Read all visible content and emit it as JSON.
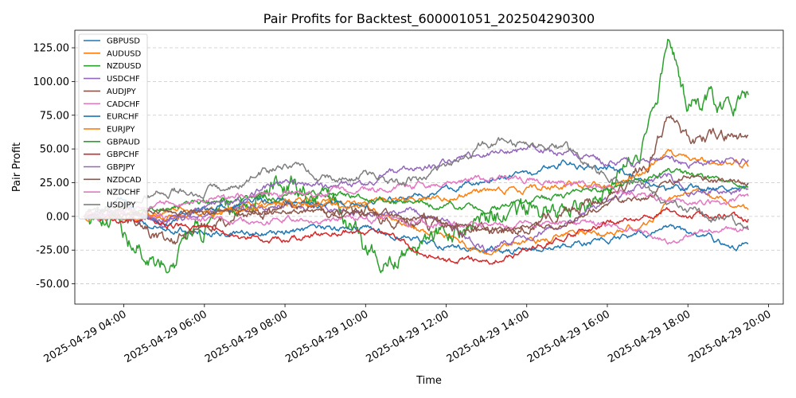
{
  "chart_data": {
    "type": "line",
    "title": "Pair Profits for Backtest_600001051_202504290300",
    "xlabel": "Time",
    "ylabel": "Pair Profit",
    "xlim": [
      "2025-04-29 02:47",
      "2025-04-29 20:22"
    ],
    "ylim": [
      -65,
      138
    ],
    "grid": "y-dashed",
    "legend_position": "upper-left",
    "x_ticks": [
      "2025-04-29 04:00",
      "2025-04-29 06:00",
      "2025-04-29 08:00",
      "2025-04-29 10:00",
      "2025-04-29 12:00",
      "2025-04-29 14:00",
      "2025-04-29 16:00",
      "2025-04-29 18:00",
      "2025-04-29 20:00"
    ],
    "y_ticks": [
      -50,
      -25,
      0,
      25,
      50,
      75,
      100,
      125
    ],
    "y_tick_labels": [
      "-50.00",
      "-25.00",
      "0.00",
      "25.00",
      "50.00",
      "75.00",
      "100.00",
      "125.00"
    ],
    "x": [
      "2025-04-29 03:00",
      "2025-04-29 04:00",
      "2025-04-29 05:00",
      "2025-04-29 06:00",
      "2025-04-29 07:00",
      "2025-04-29 08:00",
      "2025-04-29 09:00",
      "2025-04-29 10:00",
      "2025-04-29 11:00",
      "2025-04-29 12:00",
      "2025-04-29 13:00",
      "2025-04-29 14:00",
      "2025-04-29 15:00",
      "2025-04-29 16:00",
      "2025-04-29 17:00",
      "2025-04-29 17:30",
      "2025-04-29 18:00",
      "2025-04-29 19:00",
      "2025-04-29 19:30"
    ],
    "series": [
      {
        "name": "GBPUSD",
        "color": "#1f77b4",
        "values": [
          0,
          -3,
          -8,
          -12,
          -14,
          -12,
          -10,
          -8,
          -15,
          -22,
          -25,
          -25,
          -22,
          -18,
          -13,
          -8,
          -12,
          -22,
          -20
        ]
      },
      {
        "name": "AUDUSD",
        "color": "#ff7f0e",
        "values": [
          0,
          -2,
          2,
          5,
          8,
          14,
          12,
          8,
          -8,
          -15,
          -28,
          -20,
          -14,
          -12,
          -5,
          10,
          20,
          8,
          5
        ]
      },
      {
        "name": "NZDUSD",
        "color": "#2ca02c",
        "values": [
          0,
          -12,
          -35,
          -10,
          15,
          25,
          18,
          -25,
          -28,
          -10,
          -5,
          2,
          5,
          15,
          55,
          125,
          85,
          80,
          90
        ]
      },
      {
        "name": "USDCHF",
        "color": "#9467bd",
        "values": [
          0,
          5,
          -5,
          3,
          5,
          10,
          6,
          2,
          5,
          -5,
          -25,
          -15,
          -5,
          10,
          25,
          30,
          20,
          18,
          20
        ]
      },
      {
        "name": "AUDJPY",
        "color": "#8c564b",
        "values": [
          0,
          4,
          -20,
          -5,
          3,
          8,
          5,
          2,
          -2,
          -8,
          -15,
          -5,
          3,
          15,
          40,
          75,
          55,
          60,
          60
        ]
      },
      {
        "name": "CADCHF",
        "color": "#e377c2",
        "values": [
          0,
          2,
          -2,
          -3,
          -4,
          -2,
          -3,
          -2,
          -4,
          -5,
          -8,
          -6,
          -5,
          -5,
          -10,
          -20,
          -15,
          -8,
          -10
        ]
      },
      {
        "name": "EURCHF",
        "color": "#1f77b4",
        "values": [
          0,
          12,
          -5,
          4,
          10,
          12,
          8,
          10,
          15,
          20,
          28,
          30,
          40,
          35,
          25,
          20,
          22,
          20,
          24
        ]
      },
      {
        "name": "EURJPY",
        "color": "#ff7f0e",
        "values": [
          0,
          3,
          0,
          2,
          5,
          10,
          8,
          10,
          12,
          15,
          18,
          20,
          22,
          24,
          35,
          48,
          45,
          40,
          37
        ]
      },
      {
        "name": "GBPAUD",
        "color": "#2ca02c",
        "values": [
          0,
          3,
          6,
          10,
          12,
          15,
          18,
          15,
          10,
          8,
          5,
          10,
          15,
          20,
          30,
          35,
          30,
          25,
          22
        ]
      },
      {
        "name": "GBPCHF",
        "color": "#d62728",
        "values": [
          0,
          -2,
          -5,
          -10,
          -15,
          -18,
          -12,
          -10,
          -20,
          -32,
          -35,
          -25,
          -15,
          -5,
          0,
          5,
          0,
          0,
          -2
        ]
      },
      {
        "name": "GBPJPY",
        "color": "#9467bd",
        "values": [
          0,
          5,
          -5,
          5,
          15,
          25,
          22,
          25,
          35,
          40,
          45,
          50,
          48,
          40,
          38,
          45,
          40,
          40,
          42
        ]
      },
      {
        "name": "NZDCAD",
        "color": "#8c564b",
        "values": [
          0,
          2,
          5,
          3,
          4,
          5,
          3,
          2,
          0,
          -5,
          -10,
          -8,
          -5,
          10,
          15,
          25,
          30,
          25,
          25
        ]
      },
      {
        "name": "NZDCHF",
        "color": "#e377c2",
        "values": [
          0,
          3,
          10,
          12,
          15,
          15,
          18,
          20,
          22,
          25,
          28,
          28,
          25,
          20,
          15,
          10,
          12,
          10,
          15
        ]
      },
      {
        "name": "USDJPY",
        "color": "#7f7f7f",
        "values": [
          0,
          8,
          20,
          18,
          25,
          38,
          30,
          30,
          25,
          35,
          55,
          55,
          50,
          30,
          20,
          10,
          5,
          -5,
          -10
        ]
      }
    ]
  }
}
